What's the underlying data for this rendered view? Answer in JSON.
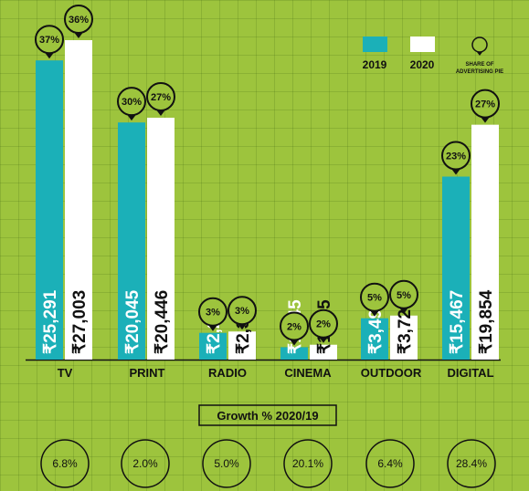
{
  "chart_data": {
    "type": "bar",
    "categories": [
      "TV",
      "PRINT",
      "RADIO",
      "CINEMA",
      "OUTDOOR",
      "DIGITAL"
    ],
    "series": [
      {
        "name": "2019",
        "values": [
          25291,
          20045,
          2260,
          1045,
          3495,
          15467
        ],
        "labels": [
          "₹25,291",
          "₹20,045",
          "₹2,260",
          "₹1,045",
          "₹3,495",
          "₹15,467"
        ],
        "share": [
          "37%",
          "30%",
          "3%",
          "2%",
          "5%",
          "23%"
        ],
        "color": "#1bb0b8"
      },
      {
        "name": "2020",
        "values": [
          27003,
          20446,
          2373,
          1255,
          3720,
          19854
        ],
        "labels": [
          "₹27,003",
          "₹20,446",
          "₹2,373",
          "₹1,255",
          "₹3,720",
          "₹19,854"
        ],
        "share": [
          "36%",
          "27%",
          "3%",
          "2%",
          "5%",
          "27%"
        ],
        "color": "#ffffff"
      }
    ],
    "ylim": [
      0,
      27003
    ],
    "grid": true,
    "legend_position": "top-right",
    "legend": {
      "items": [
        "2019",
        "2020"
      ],
      "pin_label_line1": "SHARE OF",
      "pin_label_line2": "ADVERTISING PIE"
    },
    "growth_title": "Growth % 2020/19",
    "growth": [
      "6.8%",
      "2.0%",
      "5.0%",
      "20.1%",
      "6.4%",
      "28.4%"
    ]
  }
}
